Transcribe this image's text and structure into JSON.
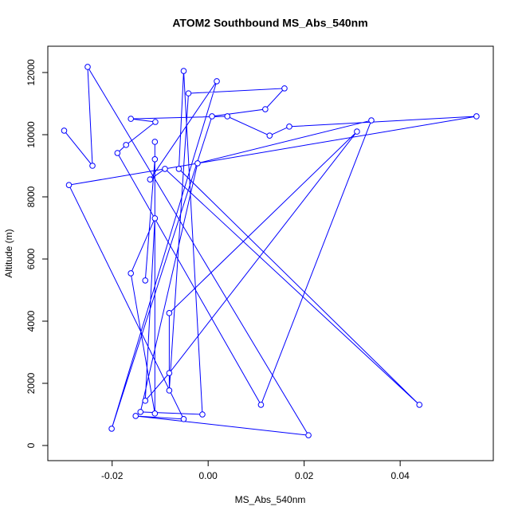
{
  "chart_data": {
    "type": "line",
    "title": "ATOM2 Southbound MS_Abs_540nm",
    "x_label": "MS_Abs_540nm",
    "y_label": "Altitude (m)",
    "color": "#0000ff",
    "markers": true,
    "x": [
      -0.03,
      -0.0241,
      -0.0251,
      0.0209,
      -0.0151,
      -0.0051,
      -0.029,
      0.0559,
      0.0169,
      0.0128,
      0.004,
      -0.0161,
      -0.011,
      -0.0171,
      -0.0189,
      0.011,
      0.034,
      -0.0022,
      -0.0141,
      -0.0012,
      -0.0051,
      -0.0061,
      0.044,
      -0.009,
      -0.0121,
      0.0018,
      -0.0201,
      0.0008,
      0.0119,
      0.0159,
      -0.0041,
      -0.0081,
      -0.0081,
      0.031,
      -0.0081,
      -0.0131,
      -0.0111,
      -0.0161,
      -0.0111,
      -0.0111,
      -0.0111,
      -0.0131
    ],
    "values": [
      10130,
      9000,
      12180,
      330,
      950,
      850,
      8380,
      10590,
      10260,
      9970,
      10590,
      10510,
      10410,
      9670,
      9410,
      1310,
      10460,
      9080,
      1080,
      1000,
      12050,
      8900,
      1310,
      8900,
      8560,
      11720,
      540,
      10590,
      10820,
      11490,
      11330,
      1770,
      4260,
      10100,
      2330,
      1440,
      7310,
      5540,
      1030,
      9770,
      9210,
      5310
    ],
    "xlim": [
      -0.0334,
      0.0594
    ],
    "ylim": [
      -487,
      12846
    ],
    "xticks": [
      -0.02,
      {
        "value": 0,
        "label": "0.00"
      },
      0.02,
      0.04
    ],
    "yticks": [
      0,
      2000,
      4000,
      6000,
      8000,
      10000,
      12000
    ]
  }
}
